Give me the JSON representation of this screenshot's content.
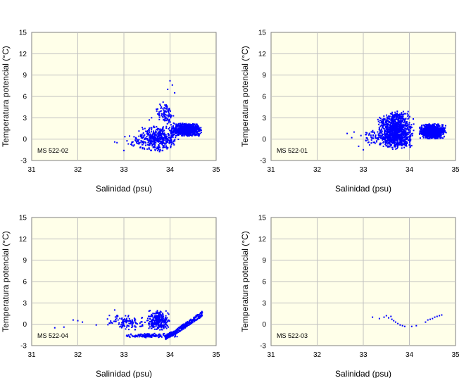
{
  "chart_data": [
    {
      "type": "scatter",
      "panel_label": "MS 522-02",
      "xlabel": "Salinidad (psu)",
      "ylabel": "Temperatura potencial (°C)",
      "xlim": [
        31,
        35
      ],
      "ylim": [
        -3,
        15
      ],
      "xticks": [
        "31",
        "32",
        "33",
        "34",
        "35"
      ],
      "yticks": [
        "-3",
        "0",
        "3",
        "6",
        "9",
        "12",
        "15"
      ],
      "grid": true,
      "marker_color": "#0000ff",
      "clusters": [
        {
          "x": [
            33.3,
            34.2
          ],
          "y": [
            -1.8,
            2.0
          ],
          "n": 420
        },
        {
          "x": [
            34.0,
            34.7
          ],
          "y": [
            0.3,
            2.3
          ],
          "n": 700
        },
        {
          "x": [
            33.7,
            34.1
          ],
          "y": [
            2.0,
            5.0
          ],
          "n": 90
        },
        {
          "x": [
            33.0,
            33.5
          ],
          "y": [
            -1.5,
            1.0
          ],
          "n": 40
        }
      ],
      "points": [
        [
          32.8,
          -0.4
        ],
        [
          32.85,
          -0.5
        ],
        [
          33.0,
          -1.6
        ],
        [
          34.0,
          8.2
        ],
        [
          34.05,
          7.6
        ],
        [
          34.1,
          6.5
        ],
        [
          33.95,
          7.0
        ],
        [
          33.85,
          5.2
        ],
        [
          33.6,
          3.0
        ],
        [
          33.55,
          2.7
        ]
      ]
    },
    {
      "type": "scatter",
      "panel_label": "MS 522-01",
      "xlabel": "Salinidad (psu)",
      "ylabel": "Temperatura potencial (°C)",
      "xlim": [
        31,
        35
      ],
      "ylim": [
        -3,
        15
      ],
      "xticks": [
        "31",
        "32",
        "33",
        "34",
        "35"
      ],
      "yticks": [
        "-3",
        "0",
        "3",
        "6",
        "9",
        "12",
        "15"
      ],
      "grid": true,
      "marker_color": "#0000ff",
      "clusters": [
        {
          "x": [
            33.3,
            34.1
          ],
          "y": [
            -1.5,
            3.5
          ],
          "n": 1100
        },
        {
          "x": [
            34.2,
            34.8
          ],
          "y": [
            0.0,
            2.2
          ],
          "n": 900
        },
        {
          "x": [
            33.5,
            34.0
          ],
          "y": [
            2.5,
            4.0
          ],
          "n": 80
        },
        {
          "x": [
            33.0,
            33.4
          ],
          "y": [
            -1.0,
            1.5
          ],
          "n": 50
        }
      ],
      "points": [
        [
          32.65,
          0.8
        ],
        [
          32.8,
          1.0
        ],
        [
          32.75,
          0.2
        ],
        [
          32.9,
          -1.0
        ],
        [
          33.0,
          -1.5
        ],
        [
          32.95,
          0.5
        ]
      ]
    },
    {
      "type": "scatter",
      "panel_label": "MS 522-04",
      "xlabel": "Salinidad (psu)",
      "ylabel": "Temperatura potencial (°C)",
      "xlim": [
        31,
        35
      ],
      "ylim": [
        -3,
        15
      ],
      "xticks": [
        "31",
        "32",
        "33",
        "34",
        "35"
      ],
      "yticks": [
        "-3",
        "0",
        "3",
        "6",
        "9",
        "12",
        "15"
      ],
      "grid": true,
      "marker_color": "#0000ff",
      "clusters": [
        {
          "x": [
            33.5,
            34.0
          ],
          "y": [
            -1.0,
            2.0
          ],
          "n": 260
        },
        {
          "x": [
            32.6,
            33.6
          ],
          "y": [
            -1.0,
            1.5
          ],
          "n": 120
        },
        {
          "x": [
            33.0,
            34.2
          ],
          "y": [
            -1.9,
            -1.3
          ],
          "n": 160
        }
      ],
      "curve": {
        "x": [
          33.9,
          34.1,
          34.3,
          34.5,
          34.7
        ],
        "y": [
          -1.8,
          -1.2,
          -0.3,
          0.6,
          1.5
        ],
        "n": 320,
        "spread": 0.35
      },
      "points": [
        [
          31.5,
          -0.5
        ],
        [
          31.7,
          -0.4
        ],
        [
          31.9,
          0.6
        ],
        [
          32.0,
          0.5
        ],
        [
          32.1,
          0.3
        ],
        [
          32.4,
          -0.1
        ],
        [
          32.8,
          2.0
        ]
      ]
    },
    {
      "type": "scatter",
      "panel_label": "MS 522-03",
      "xlabel": "Salinidad (psu)",
      "ylabel": "Temperatura potencial (°C)",
      "xlim": [
        31,
        35
      ],
      "ylim": [
        -3,
        15
      ],
      "xticks": [
        "31",
        "32",
        "33",
        "34",
        "35"
      ],
      "yticks": [
        "-3",
        "0",
        "3",
        "6",
        "9",
        "12",
        "15"
      ],
      "grid": true,
      "marker_color": "#0000ff",
      "clusters": [],
      "points": [
        [
          33.2,
          1.0
        ],
        [
          33.35,
          0.8
        ],
        [
          33.45,
          1.0
        ],
        [
          33.5,
          1.2
        ],
        [
          33.55,
          0.9
        ],
        [
          33.6,
          1.1
        ],
        [
          33.62,
          0.7
        ],
        [
          33.66,
          0.5
        ],
        [
          33.7,
          0.3
        ],
        [
          33.75,
          0.1
        ],
        [
          33.8,
          -0.1
        ],
        [
          33.85,
          -0.2
        ],
        [
          33.9,
          -0.3
        ],
        [
          34.05,
          -0.3
        ],
        [
          34.15,
          -0.2
        ],
        [
          34.35,
          0.3
        ],
        [
          34.4,
          0.6
        ],
        [
          34.45,
          0.7
        ],
        [
          34.5,
          0.8
        ],
        [
          34.55,
          1.0
        ],
        [
          34.6,
          1.1
        ],
        [
          34.65,
          1.2
        ],
        [
          34.7,
          1.3
        ]
      ]
    }
  ]
}
